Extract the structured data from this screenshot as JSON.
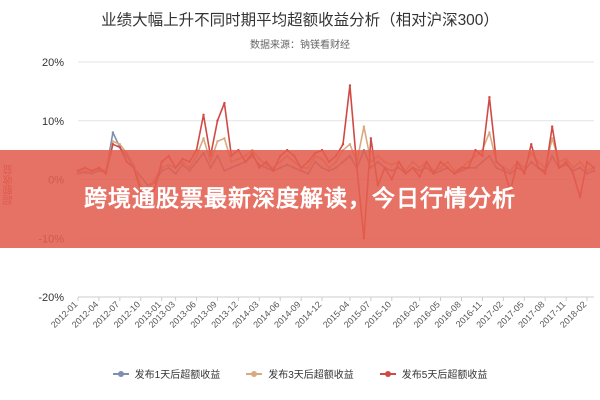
{
  "chart_data": {
    "type": "line",
    "title": "业绩大幅上升不同时期平均超额收益分析（相对沪深300）",
    "subtitle": "数据来源：钠镁看财经",
    "ylabel": "超额收益",
    "xlabel": "",
    "ylim": [
      -0.2,
      0.2
    ],
    "yticks": [
      "20%",
      "10%",
      "0%",
      "-10%",
      "-20%"
    ],
    "yticks_values": [
      0.2,
      0.1,
      0,
      -0.1,
      -0.2
    ],
    "grid": true,
    "legend_position": "bottom",
    "x": [
      "2012-01",
      "2012-02",
      "2012-03",
      "2012-04",
      "2012-05",
      "2012-06",
      "2012-07",
      "2012-08",
      "2012-09",
      "2012-10",
      "2012-11",
      "2012-12",
      "2013-01",
      "2013-02",
      "2013-03",
      "2013-04",
      "2013-05",
      "2013-06",
      "2013-07",
      "2013-08",
      "2013-09",
      "2013-10",
      "2013-11",
      "2013-12",
      "2014-01",
      "2014-02",
      "2014-03",
      "2014-04",
      "2014-05",
      "2014-06",
      "2014-07",
      "2014-08",
      "2014-09",
      "2014-10",
      "2014-11",
      "2014-12",
      "2015-01",
      "2015-02",
      "2015-03",
      "2015-04",
      "2015-05",
      "2015-06",
      "2015-07",
      "2015-08",
      "2015-09",
      "2015-10",
      "2015-11",
      "2015-12",
      "2016-01",
      "2016-02",
      "2016-03",
      "2016-04",
      "2016-05",
      "2016-06",
      "2016-07",
      "2016-08",
      "2016-09",
      "2016-10",
      "2016-11",
      "2016-12",
      "2017-01",
      "2017-02",
      "2017-03",
      "2017-04",
      "2017-05",
      "2017-06",
      "2017-07",
      "2017-08",
      "2017-09",
      "2017-10",
      "2017-11",
      "2017-12",
      "2018-01",
      "2018-02",
      "2018-03"
    ],
    "x_tick_labels": [
      "2012-01",
      "2012-04",
      "2012-07",
      "2012-10",
      "2013-01",
      "2013-03",
      "2013-06",
      "2013-09",
      "2013-12",
      "2014-03",
      "2014-06",
      "2014-09",
      "2014-12",
      "2015-04",
      "2015-07",
      "2015-10",
      "2016-02",
      "2016-05",
      "2016-08",
      "2016-11",
      "2017-02",
      "2017-05",
      "2017-08",
      "2017-11",
      "2018-02"
    ],
    "series": [
      {
        "name": "发布1天后超额收益",
        "color": "#7f8fb0",
        "values": [
          0.01,
          0.012,
          0.01,
          0.015,
          0.012,
          0.08,
          0.055,
          0.04,
          0.02,
          0.005,
          -0.01,
          -0.005,
          0.015,
          0.02,
          0.01,
          0.025,
          0.015,
          0.03,
          0.045,
          0.02,
          0.04,
          0.015,
          0.02,
          0.025,
          0.03,
          0.04,
          0.025,
          0.02,
          0.015,
          0.02,
          0.025,
          0.02,
          0.015,
          0.01,
          0.03,
          0.02,
          0.015,
          0.02,
          0.03,
          0.04,
          0.02,
          0.05,
          0.02,
          0.03,
          0.02,
          0.015,
          0.02,
          0.01,
          0.02,
          0.015,
          0.02,
          0.01,
          0.015,
          0.02,
          0.01,
          0.015,
          0.02,
          0.02,
          0.03,
          0.04,
          0.02,
          0.015,
          0.01,
          0.02,
          0.015,
          0.03,
          0.02,
          0.015,
          0.04,
          0.02,
          0.025,
          0.015,
          0.02,
          0.01,
          0.015
        ]
      },
      {
        "name": "发布3天后超额收益",
        "color": "#d9aa80",
        "values": [
          0.012,
          0.015,
          0.012,
          0.018,
          0.015,
          0.065,
          0.06,
          0.045,
          0.025,
          -0.01,
          -0.02,
          0.0,
          0.02,
          0.025,
          0.02,
          0.03,
          0.02,
          0.04,
          0.07,
          0.03,
          0.065,
          0.07,
          0.03,
          0.035,
          0.04,
          0.05,
          0.035,
          0.025,
          0.02,
          0.03,
          0.04,
          0.03,
          0.02,
          0.02,
          0.04,
          0.035,
          0.02,
          0.03,
          0.05,
          0.06,
          0.03,
          0.09,
          0.03,
          0.04,
          0.03,
          0.025,
          0.03,
          0.015,
          0.03,
          0.02,
          0.03,
          0.015,
          0.02,
          0.03,
          0.015,
          0.02,
          0.03,
          0.04,
          0.05,
          0.08,
          0.03,
          0.02,
          0.015,
          0.03,
          0.02,
          0.045,
          0.03,
          0.02,
          0.07,
          0.03,
          0.035,
          0.02,
          0.03,
          0.015,
          0.02
        ]
      },
      {
        "name": "发布5天后超额收益",
        "color": "#d04a45",
        "values": [
          0.015,
          0.02,
          0.015,
          0.02,
          0.01,
          0.06,
          0.055,
          0.03,
          0.02,
          -0.02,
          -0.04,
          -0.015,
          0.03,
          0.04,
          0.02,
          0.035,
          0.03,
          0.05,
          0.11,
          0.04,
          0.1,
          0.13,
          0.04,
          0.05,
          0.03,
          0.045,
          0.02,
          0.03,
          0.015,
          0.04,
          0.05,
          0.04,
          0.02,
          0.03,
          0.045,
          0.05,
          0.03,
          0.04,
          0.06,
          0.16,
          0.02,
          -0.1,
          0.07,
          -0.01,
          0.02,
          0.0,
          0.03,
          0.01,
          0.02,
          0.005,
          0.03,
          0.01,
          0.03,
          0.02,
          0.01,
          0.02,
          0.02,
          0.05,
          0.04,
          0.14,
          0.03,
          0.02,
          -0.02,
          0.03,
          0.01,
          0.06,
          0.02,
          0.01,
          0.09,
          0.02,
          0.03,
          0.01,
          -0.03,
          0.03,
          0.02
        ]
      }
    ]
  },
  "banner": {
    "text": "跨境通股票最新深度解读，今日行情分析"
  }
}
